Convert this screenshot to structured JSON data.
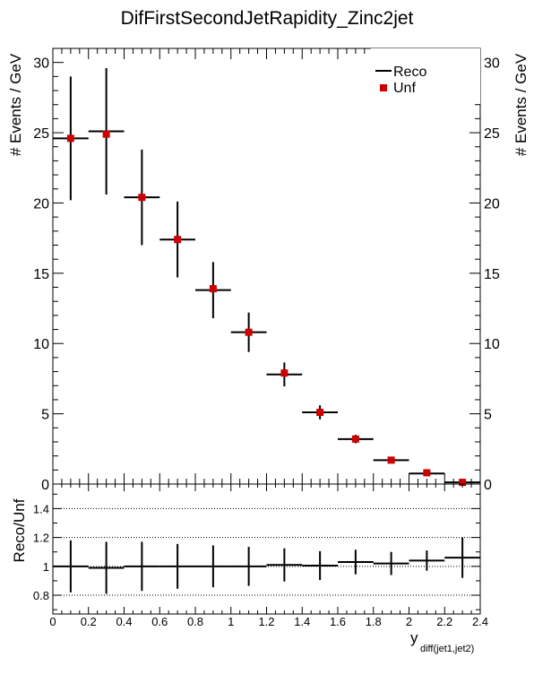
{
  "chart_data": [
    {
      "type": "scatter",
      "title": "DifFirstSecondJetRapidity_Zinc2jet",
      "ylabel": "# Events / GeV",
      "xlim": [
        0,
        2.4
      ],
      "ylim": [
        0,
        31
      ],
      "yticks": [
        "0",
        "5",
        "10",
        "15",
        "20",
        "25",
        "30"
      ],
      "legend": {
        "placement": "top-right",
        "entries": [
          "Reco",
          "Unf"
        ]
      },
      "bin_edges": [
        0,
        0.2,
        0.4,
        0.6,
        0.8,
        1.0,
        1.2,
        1.4,
        1.6,
        1.8,
        2.0,
        2.2,
        2.4
      ],
      "series": [
        {
          "name": "Reco",
          "values": [
            24.6,
            25.1,
            20.4,
            17.4,
            13.8,
            10.8,
            7.8,
            5.1,
            3.2,
            1.7,
            0.75,
            0.12
          ],
          "errors": [
            4.4,
            4.5,
            3.4,
            2.7,
            2.0,
            1.4,
            0.85,
            0.5,
            0.3,
            0.18,
            0.1,
            0.04
          ]
        },
        {
          "name": "Unf",
          "color": "#cc0000",
          "values": [
            24.6,
            24.9,
            20.4,
            17.4,
            13.9,
            10.8,
            7.9,
            5.1,
            3.2,
            1.7,
            0.8,
            0.12
          ]
        }
      ]
    },
    {
      "type": "scatter",
      "ylabel": "Reco/Unf",
      "xlabel": "y",
      "xlabel_sub": "diff(jet1,jet2)",
      "xlim": [
        0,
        2.4
      ],
      "ylim": [
        0.67,
        1.57
      ],
      "xticks": [
        "0",
        "0.2",
        "0.4",
        "0.6",
        "0.8",
        "1",
        "1.2",
        "1.4",
        "1.6",
        "1.8",
        "2",
        "2.2",
        "2.4"
      ],
      "yticks": [
        "0.8",
        "1",
        "1.2",
        "1.4"
      ],
      "grid": "horizontal dotted",
      "bin_edges": [
        0,
        0.2,
        0.4,
        0.6,
        0.8,
        1.0,
        1.2,
        1.4,
        1.6,
        1.8,
        2.0,
        2.2,
        2.4
      ],
      "series": [
        {
          "name": "Reco/Unf",
          "values": [
            1.0,
            0.99,
            1.0,
            1.0,
            1.0,
            1.0,
            1.01,
            1.005,
            1.03,
            1.02,
            1.04,
            1.06
          ],
          "errors": [
            0.18,
            0.18,
            0.17,
            0.155,
            0.145,
            0.135,
            0.115,
            0.1,
            0.085,
            0.08,
            0.07,
            0.14
          ]
        }
      ]
    }
  ]
}
